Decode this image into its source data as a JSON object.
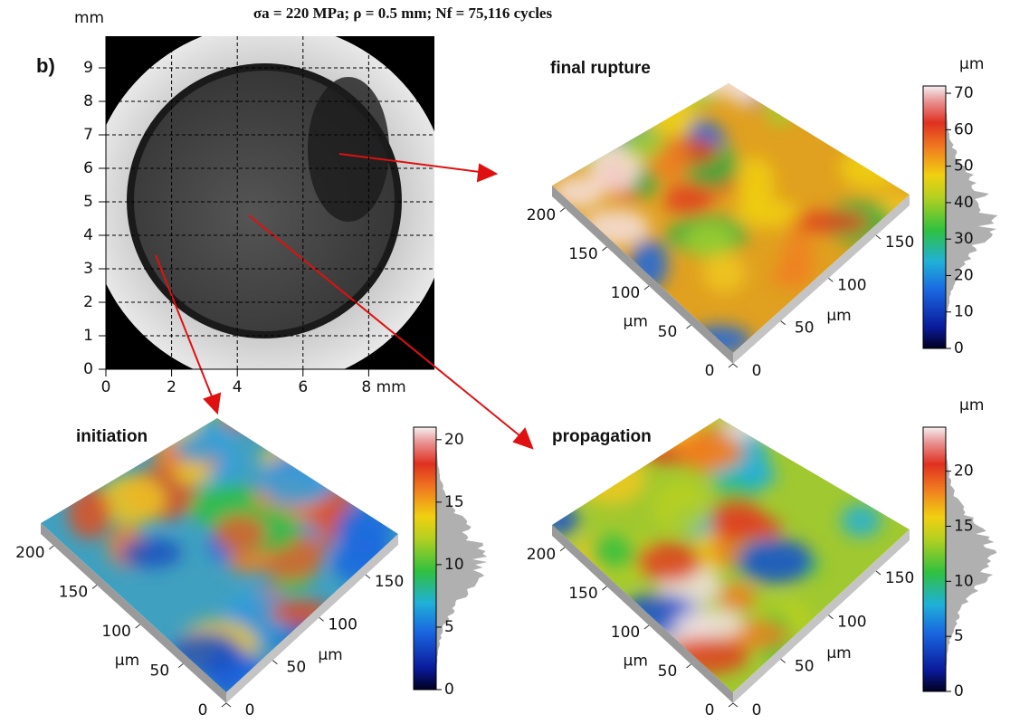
{
  "title": "σa = 220 MPa; ρ = 0.5 mm; Nf = 75,116 cycles",
  "panel_label": "b)",
  "micrograph": {
    "unit": "mm",
    "xlim": [
      0,
      10
    ],
    "ylim": [
      0,
      10
    ],
    "xticks": [
      0,
      2,
      4,
      6,
      {
        "value": 8,
        "label": "8 mm"
      }
    ],
    "yticks": [
      0,
      1,
      2,
      3,
      4,
      5,
      6,
      7,
      8,
      9
    ]
  },
  "surfaces": [
    {
      "label": "final rupture",
      "unit": "µm",
      "zlim": [
        0,
        72
      ],
      "zticks": [
        0,
        10,
        20,
        30,
        40,
        50,
        60,
        70
      ],
      "left_axis": {
        "lim": [
          0,
          215
        ],
        "ticks": [
          0,
          50,
          100,
          150,
          200
        ],
        "label": "µm"
      },
      "right_axis": {
        "lim": [
          0,
          185
        ],
        "ticks": [
          0,
          50,
          100,
          150
        ],
        "label": "µm"
      }
    },
    {
      "label": "initiation",
      "zlim": [
        0,
        21
      ],
      "zticks": [
        0,
        5,
        10,
        15,
        20
      ],
      "left_axis": {
        "lim": [
          0,
          215
        ],
        "ticks": [
          0,
          50,
          100,
          150,
          200
        ],
        "label": "µm"
      },
      "right_axis": {
        "lim": [
          0,
          185
        ],
        "ticks": [
          0,
          50,
          100,
          150
        ],
        "label": "µm"
      }
    },
    {
      "label": "propagation",
      "unit": "µm",
      "zlim": [
        0,
        24
      ],
      "zticks": [
        0,
        5,
        10,
        15,
        20
      ],
      "left_axis": {
        "lim": [
          0,
          215
        ],
        "ticks": [
          0,
          50,
          100,
          150,
          200
        ],
        "label": "µm"
      },
      "right_axis": {
        "lim": [
          0,
          185
        ],
        "ticks": [
          0,
          50,
          100,
          150
        ],
        "label": "µm"
      }
    }
  ]
}
